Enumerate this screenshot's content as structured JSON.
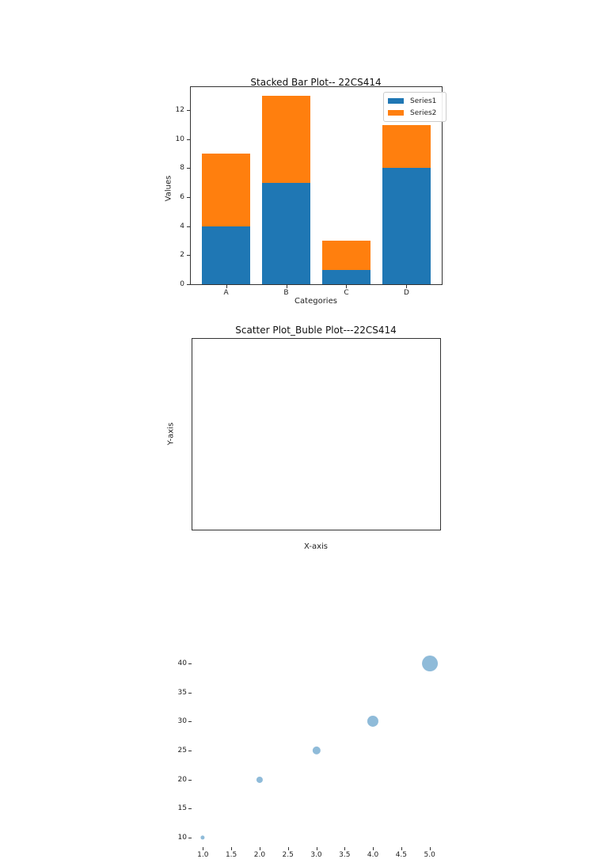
{
  "colors": {
    "series1": "#1f77b4",
    "series2": "#ff7f0e",
    "bubble": "#1f77b4"
  },
  "chart_data": [
    {
      "type": "bar",
      "stacked": true,
      "title": "Stacked Bar Plot-- 22CS414",
      "xlabel": "Categories",
      "ylabel": "Values",
      "categories": [
        "A",
        "B",
        "C",
        "D"
      ],
      "series": [
        {
          "name": "Series1",
          "values": [
            4,
            7,
            1,
            8
          ]
        },
        {
          "name": "Series2",
          "values": [
            5,
            6,
            2,
            3
          ]
        }
      ],
      "ylim": [
        0,
        13.65
      ],
      "yticks": [
        "0",
        "2",
        "4",
        "6",
        "8",
        "10",
        "12"
      ],
      "grid": false,
      "legend_position": "upper right"
    },
    {
      "type": "scatter",
      "title": "Scatter Plot_Buble Plot---22CS414",
      "xlabel": "X-axis",
      "ylabel": "Y-axis",
      "x": [
        1,
        2,
        3,
        4,
        5
      ],
      "y": [
        10,
        20,
        25,
        30,
        40
      ],
      "sizes": [
        20,
        50,
        80,
        150,
        300
      ],
      "alpha": 0.5,
      "xlim": [
        0.8,
        5.2
      ],
      "ylim": [
        8.5,
        41.5
      ],
      "xticks": [
        "1.0",
        "1.5",
        "2.0",
        "2.5",
        "3.0",
        "3.5",
        "4.0",
        "4.5",
        "5.0"
      ],
      "yticks": [
        "10",
        "15",
        "20",
        "25",
        "30",
        "35",
        "40"
      ],
      "grid": false
    }
  ]
}
